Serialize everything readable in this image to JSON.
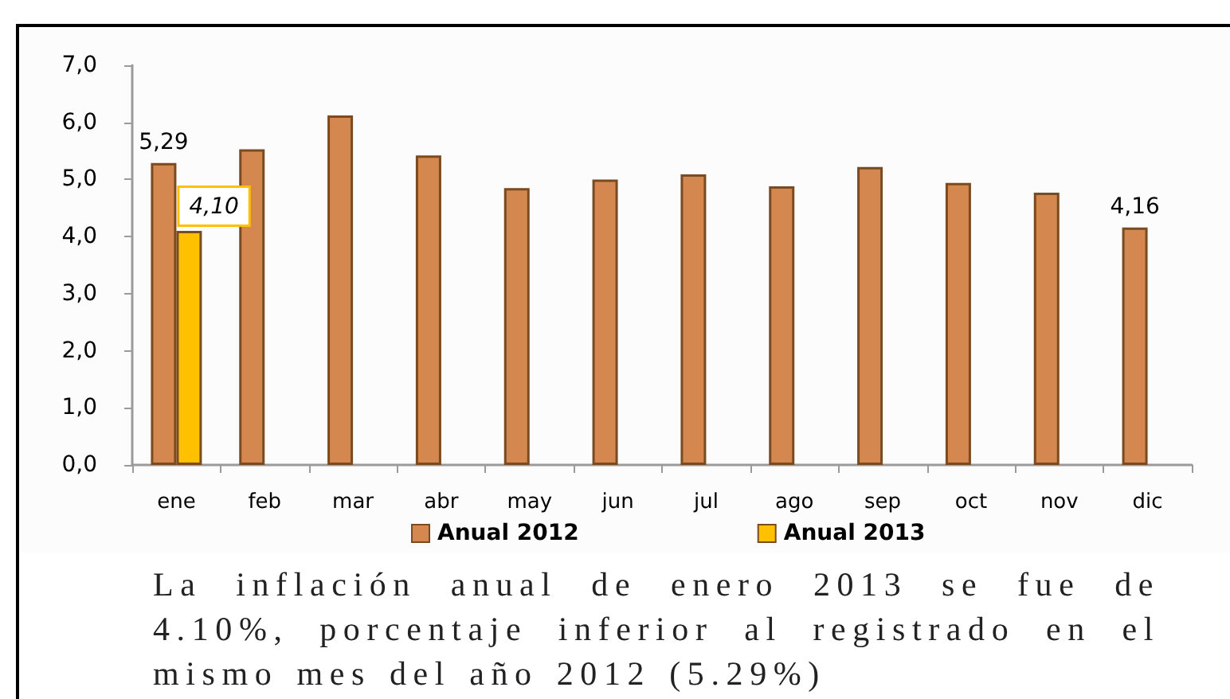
{
  "chart_data": {
    "type": "bar",
    "categories": [
      "ene",
      "feb",
      "mar",
      "abr",
      "may",
      "jun",
      "jul",
      "ago",
      "sep",
      "oct",
      "nov",
      "dic"
    ],
    "series": [
      {
        "name": "Anual 2012",
        "color": "#d4884f",
        "values": [
          5.29,
          5.53,
          6.12,
          5.42,
          4.85,
          5.0,
          5.09,
          4.88,
          5.22,
          4.94,
          4.77,
          4.16
        ],
        "value_labels": [
          "5,29",
          null,
          null,
          null,
          null,
          null,
          null,
          null,
          null,
          null,
          null,
          "4,16"
        ]
      },
      {
        "name": "Anual 2013",
        "color": "#ffc000",
        "values": [
          4.1,
          null,
          null,
          null,
          null,
          null,
          null,
          null,
          null,
          null,
          null,
          null
        ],
        "value_labels": [
          "4,10",
          null,
          null,
          null,
          null,
          null,
          null,
          null,
          null,
          null,
          null,
          null
        ]
      }
    ],
    "ylim": [
      0,
      7
    ],
    "yticks": [
      {
        "value": 0,
        "label": "0,0"
      },
      {
        "value": 1,
        "label": "1,0"
      },
      {
        "value": 2,
        "label": "2,0"
      },
      {
        "value": 3,
        "label": "3,0"
      },
      {
        "value": 4,
        "label": "4,0"
      },
      {
        "value": 5,
        "label": "5,0"
      },
      {
        "value": 6,
        "label": "6,0"
      },
      {
        "value": 7,
        "label": "7,0"
      }
    ],
    "grid": false,
    "legend": "bottom",
    "annotations": [
      "La inflación anual de enero 2013 se fue de 4.10%, porcentaje inferior al registrado en el mismo mes del año 2012 (5.29%)"
    ]
  }
}
